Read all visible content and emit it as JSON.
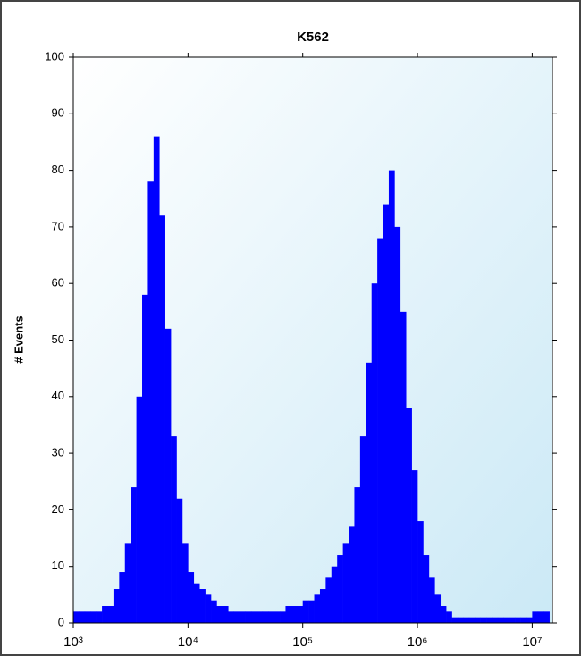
{
  "chart_data": {
    "type": "histogram",
    "title": "K562",
    "ylabel": "# Events",
    "log_x": true,
    "color": "#0000ff",
    "bins": [
      1000,
      1122,
      1259,
      1413,
      1585,
      1778,
      1995,
      2239,
      2512,
      2818,
      3162,
      3548,
      3981,
      4467,
      5012,
      5623,
      6310,
      7079,
      7943,
      8913,
      10000,
      11220,
      12590,
      14130,
      15850,
      17780,
      19950,
      22390,
      25120,
      28180,
      31620,
      35480,
      39810,
      44670,
      50120,
      56230,
      63100,
      70790,
      79430,
      89130,
      100000,
      112200,
      125900,
      141300,
      158500,
      177800,
      199500,
      223900,
      251200,
      281800,
      316200,
      354800,
      398100,
      446700,
      501200,
      562300,
      631000,
      707900,
      794300,
      891300,
      1000000,
      1122000,
      1259000,
      1413000,
      1585000,
      1778000,
      1995000,
      2239000,
      2512000,
      2818000,
      3162000,
      3548000,
      3981000,
      4467000,
      5012000,
      5623000,
      6310000,
      7079000,
      7943000,
      8913000,
      10000000,
      11220000,
      12590000,
      14130000
    ],
    "values": [
      2,
      2,
      2,
      2,
      2,
      3,
      3,
      6,
      9,
      14,
      24,
      40,
      58,
      78,
      86,
      72,
      52,
      33,
      22,
      14,
      9,
      7,
      6,
      5,
      4,
      3,
      3,
      2,
      2,
      2,
      2,
      2,
      2,
      2,
      2,
      2,
      2,
      3,
      3,
      3,
      4,
      4,
      5,
      6,
      8,
      10,
      12,
      14,
      17,
      24,
      33,
      46,
      60,
      68,
      74,
      80,
      70,
      55,
      38,
      27,
      18,
      12,
      8,
      5,
      3,
      2,
      1,
      1,
      1,
      1,
      1,
      1,
      1,
      1,
      1,
      1,
      1,
      1,
      1,
      1,
      2,
      2,
      2
    ],
    "xlim": [
      1000,
      15000000
    ],
    "xticks": [
      {
        "value": 1000,
        "label": "10³"
      },
      {
        "value": 10000,
        "label": "10⁴"
      },
      {
        "value": 100000,
        "label": "10⁵"
      },
      {
        "value": 1000000,
        "label": "10⁶"
      },
      {
        "value": 10000000,
        "label": "10⁷"
      }
    ],
    "ylim": [
      0,
      100
    ],
    "yticks": [
      0,
      10,
      20,
      30,
      40,
      50,
      60,
      70,
      80,
      90,
      100
    ]
  }
}
